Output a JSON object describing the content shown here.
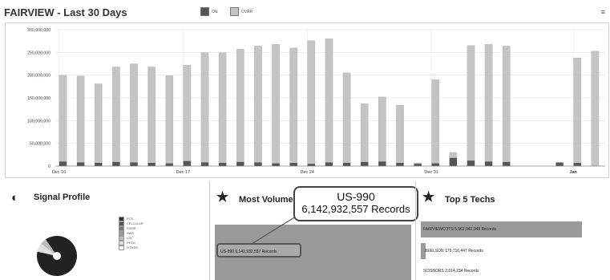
{
  "header": {
    "title": "FAIRVIEW - Last 30 Days",
    "legend": [
      {
        "label": "ON",
        "color": "#555555"
      },
      {
        "label": "OVER",
        "color": "#c4c4c4"
      }
    ]
  },
  "colors": {
    "primary_bar": "#c4c4c4",
    "secondary_bar": "#555555",
    "panel_bar": "#9a9a9a"
  },
  "chart_data": {
    "type": "bar",
    "ylim": [
      0,
      300000000
    ],
    "y_ticks": [
      "300,000,000",
      "250,000,000",
      "200,000,000",
      "150,000,000",
      "100,000,000",
      "50,000,000",
      "0"
    ],
    "x_tick_labels": [
      {
        "index": 0,
        "label": "Dec 10"
      },
      {
        "index": 7,
        "label": "Dec 17"
      },
      {
        "index": 14,
        "label": "Dec 24"
      },
      {
        "index": 21,
        "label": "Dec 31"
      },
      {
        "index": 29,
        "label": "Jan"
      }
    ],
    "series": [
      {
        "values": [
          200000000,
          198000000,
          181000000,
          218000000,
          225000000,
          218000000,
          199000000,
          222000000,
          249000000,
          249000000,
          257000000,
          264000000,
          268000000,
          260000000,
          276000000,
          280000000,
          205000000,
          137000000,
          152000000,
          134000000,
          7000000,
          190000000,
          30000000,
          265000000,
          268000000,
          264000000,
          0,
          0,
          0,
          238000000,
          253000000
        ]
      },
      {
        "values": [
          10000000,
          8000000,
          7000000,
          9000000,
          8000000,
          7000000,
          6000000,
          11000000,
          8000000,
          7000000,
          9000000,
          8000000,
          6000000,
          7000000,
          5000000,
          8000000,
          7000000,
          9000000,
          10000000,
          7000000,
          5000000,
          6000000,
          18000000,
          12000000,
          10000000,
          9000000,
          0,
          0,
          8000000,
          7000000,
          0
        ]
      }
    ]
  },
  "signal_profile": {
    "title": "Signal Profile",
    "legend": [
      "PCS",
      "CELLULAR",
      "ESMR",
      "AWS",
      "LTE",
      "PSTN",
      "OTHER"
    ],
    "slices": [
      {
        "value": 88,
        "color": "#222222"
      },
      {
        "value": 7,
        "color": "#e0e0e0"
      },
      {
        "value": 5,
        "color": "#bcbcbc"
      }
    ]
  },
  "most_volume": {
    "title": "Most Volume",
    "bar_label": "US-990 6,142,932,557 Records",
    "callout_line1": "US-990",
    "callout_line2": "6,142,932,557 Records"
  },
  "top_techs": {
    "title": "Top 5 Techs",
    "items": [
      {
        "label": "FAIRVIEWCOTS 5,962,942,049 Records",
        "fraction": 0.98
      },
      {
        "label": "BEELSON 179,716,447 Records",
        "fraction": 0.03
      },
      {
        "label": "SCISSORS 2,614,234 Records",
        "fraction": 0.0
      }
    ]
  }
}
